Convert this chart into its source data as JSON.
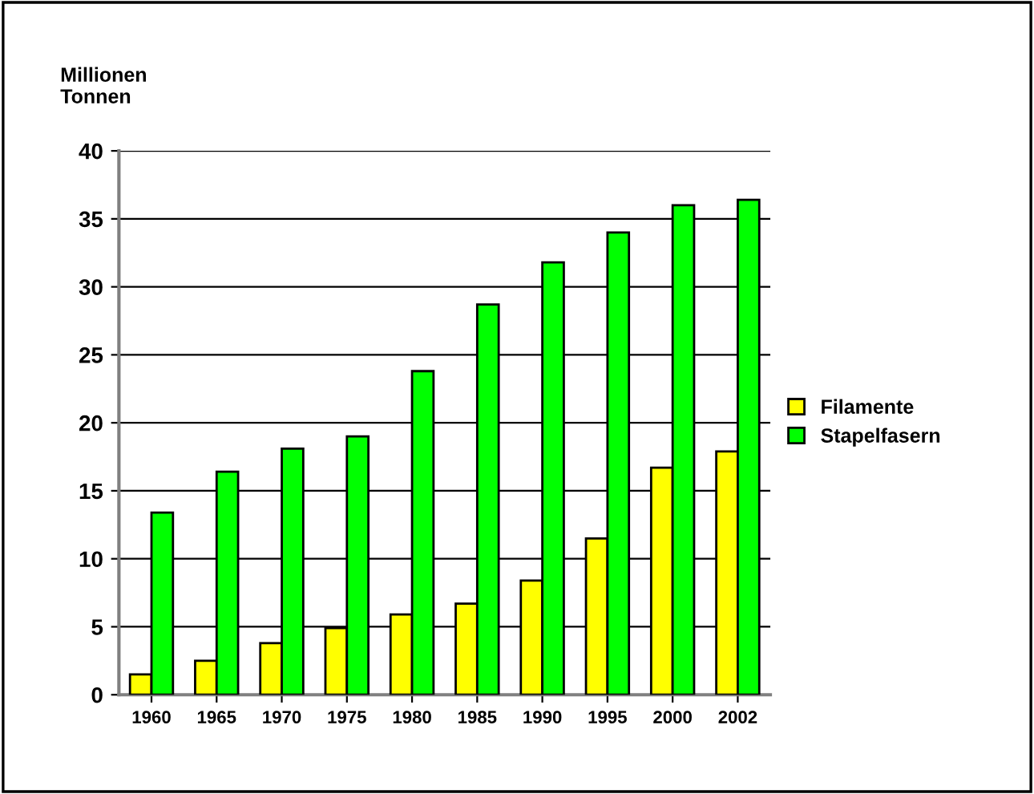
{
  "chart_data": {
    "type": "bar",
    "ylabel": "Millionen\nTonnen",
    "categories": [
      "1960",
      "1965",
      "1970",
      "1975",
      "1980",
      "1985",
      "1990",
      "1995",
      "2000",
      "2002"
    ],
    "series": [
      {
        "name": "Filamente",
        "color": "#ffff00",
        "values": [
          1.5,
          2.5,
          3.8,
          4.9,
          5.9,
          6.7,
          8.4,
          11.5,
          16.7,
          17.9
        ]
      },
      {
        "name": "Stapelfasern",
        "color": "#00ff00",
        "values": [
          13.4,
          16.4,
          18.1,
          19.0,
          23.8,
          28.7,
          31.8,
          34.0,
          36.0,
          36.4
        ]
      }
    ],
    "ylim": [
      0,
      40
    ],
    "yticks": [
      0,
      5,
      10,
      15,
      20,
      25,
      30,
      35,
      40
    ],
    "grid": "y",
    "legend": "right"
  }
}
